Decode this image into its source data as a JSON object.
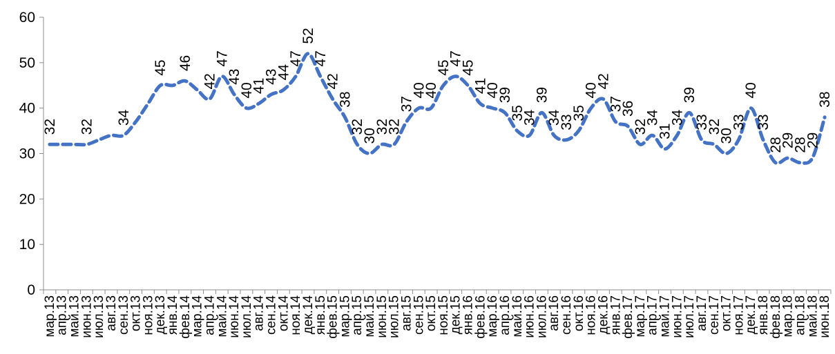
{
  "chart_data": {
    "type": "line",
    "title": "",
    "xlabel": "",
    "ylabel": "",
    "ylim": [
      0,
      60
    ],
    "yticks": [
      0,
      10,
      20,
      30,
      40,
      50,
      60
    ],
    "grid": false,
    "legend": "none",
    "line_style": "dashed",
    "color": "#4472C4",
    "categories": [
      "мар.13",
      "апр.13",
      "май.13",
      "июн.13",
      "июл.13",
      "авг.13",
      "сен.13",
      "окт.13",
      "ноя.13",
      "дек.13",
      "янв.14",
      "фев.14",
      "мар.14",
      "апр.14",
      "май.14",
      "июн.14",
      "июл.14",
      "авг.14",
      "сен.14",
      "окт.14",
      "ноя.14",
      "дек.14",
      "янв.15",
      "фев.15",
      "мар.15",
      "апр.15",
      "май.15",
      "июн.15",
      "июл.15",
      "авг.15",
      "сен.15",
      "окт.15",
      "ноя.15",
      "дек.15",
      "янв.16",
      "фев.16",
      "мар.16",
      "апр.16",
      "май.16",
      "июн.16",
      "июл.16",
      "авг.16",
      "сен.16",
      "окт.16",
      "ноя.16",
      "дек.16",
      "янв.17",
      "фев.17",
      "мар.17",
      "апр.17",
      "май.17",
      "июн.17",
      "июл.17",
      "авг.17",
      "сен.17",
      "окт.17",
      "ноя.17",
      "дек.17",
      "янв.18",
      "фев.18",
      "мар.18",
      "апр.18",
      "май.18",
      "июн.18"
    ],
    "values": [
      32,
      32,
      32,
      32,
      33,
      34,
      34,
      37,
      41,
      45,
      45,
      46,
      44,
      42,
      47,
      43,
      40,
      41,
      43,
      44,
      47,
      52,
      47,
      42,
      38,
      32,
      30,
      32,
      32,
      37,
      40,
      40,
      45,
      47,
      45,
      41,
      40,
      39,
      35,
      34,
      39,
      34,
      33,
      35,
      40,
      42,
      37,
      36,
      32,
      34,
      31,
      34,
      39,
      33,
      32,
      30,
      33,
      40,
      33,
      28,
      29,
      28,
      29,
      38
    ],
    "data_labels": [
      "32",
      "",
      "",
      "32",
      "",
      "",
      "34",
      "",
      "",
      "45",
      "",
      "46",
      "",
      "42",
      "47",
      "43",
      "40",
      "41",
      "43",
      "44",
      "47",
      "52",
      "47",
      "42",
      "38",
      "32",
      "30",
      "32",
      "32",
      "37",
      "40",
      "40",
      "45",
      "47",
      "45",
      "41",
      "40",
      "39",
      "35",
      "34",
      "39",
      "34",
      "33",
      "35",
      "40",
      "42",
      "37",
      "36",
      "32",
      "34",
      "31",
      "34",
      "39",
      "33",
      "32",
      "30",
      "33",
      "40",
      "33",
      "28",
      "29",
      "28",
      "29",
      "38"
    ]
  }
}
